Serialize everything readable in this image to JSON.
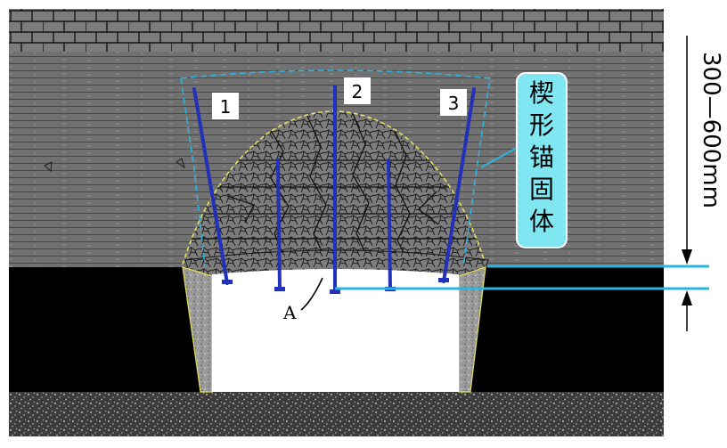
{
  "diagram": {
    "bolt_labels": [
      "1",
      "2",
      "3"
    ],
    "point_label": "A",
    "callout_chars": [
      "楔",
      "形",
      "锚",
      "固",
      "体"
    ],
    "dimension_label": "300—600mm",
    "colors": {
      "bolt": "#2232b8",
      "accent_line": "#2cb4e0",
      "callout_fill": "#7fe6f2",
      "dome_outline": "#e6e05a",
      "brick": "#7a7a7a",
      "strata": "#707070",
      "void": "#000000"
    }
  }
}
